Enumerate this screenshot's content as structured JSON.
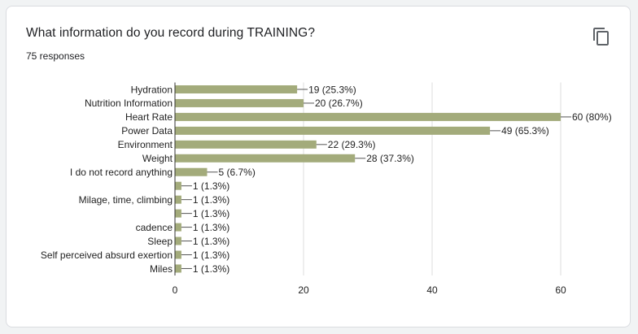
{
  "card": {
    "question": "What information do you record during TRAINING?",
    "response_count": "75 responses",
    "copy_icon": "copy-icon"
  },
  "colors": {
    "bar": "#a3ab7b",
    "axis": "#333333",
    "grid": "#dddddd",
    "text": "#222222"
  },
  "chart_data": {
    "type": "bar",
    "orientation": "horizontal",
    "categories": [
      "Hydration",
      "Nutrition Information",
      "Heart Rate",
      "Power Data",
      "Environment",
      "Weight",
      "I do not record anything",
      "",
      "Milage, time, climbing",
      "",
      "cadence",
      "Sleep",
      "Self perceived absurd exertion",
      "Miles"
    ],
    "values": [
      19,
      20,
      60,
      49,
      22,
      28,
      5,
      1,
      1,
      1,
      1,
      1,
      1,
      1
    ],
    "data_labels": [
      "19 (25.3%)",
      "20 (26.7%)",
      "60 (80%)",
      "49 (65.3%)",
      "22 (29.3%)",
      "28 (37.3%)",
      "5 (6.7%)",
      "1 (1.3%)",
      "1 (1.3%)",
      "1 (1.3%)",
      "1 (1.3%)",
      "1 (1.3%)",
      "1 (1.3%)",
      "1 (1.3%)"
    ],
    "xlim": [
      0,
      60
    ],
    "xticks": [
      0,
      20,
      40,
      60
    ],
    "grid": true,
    "legend": "none"
  }
}
